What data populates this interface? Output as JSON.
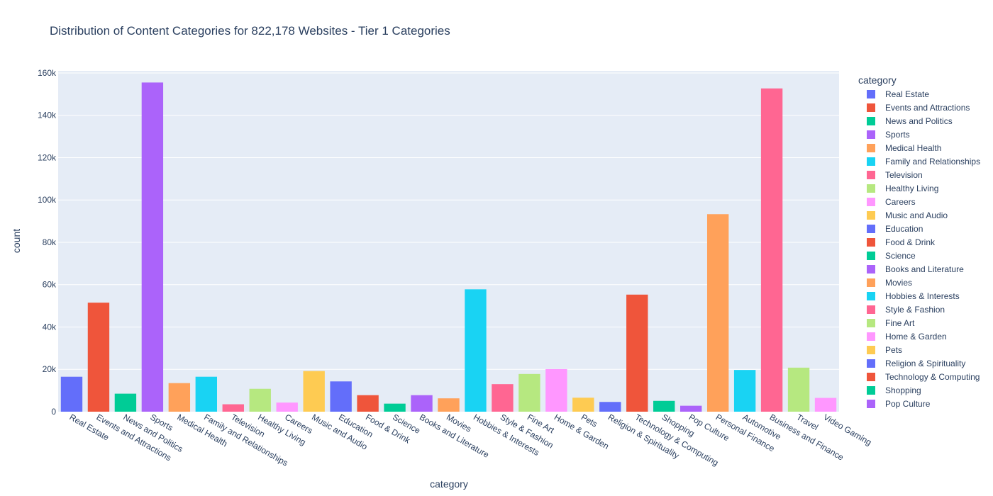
{
  "chart_data": {
    "type": "bar",
    "title": "Distribution of Content Categories for 822,178 Websites - Tier 1 Categories",
    "xlabel": "category",
    "ylabel": "count",
    "ylim": [
      0,
      161000
    ],
    "yticks": [
      0,
      20000,
      40000,
      60000,
      80000,
      100000,
      120000,
      140000,
      160000
    ],
    "ytick_labels": [
      "0",
      "20k",
      "40k",
      "60k",
      "80k",
      "100k",
      "120k",
      "140k",
      "160k"
    ],
    "grid": true,
    "legend_title": "category",
    "legend_position": "right",
    "categories": [
      "Real Estate",
      "Events and Attractions",
      "News and Politics",
      "Sports",
      "Medical Health",
      "Family and Relationships",
      "Television",
      "Healthy Living",
      "Careers",
      "Music and Audio",
      "Education",
      "Food & Drink",
      "Science",
      "Books and Literature",
      "Movies",
      "Hobbies & Interests",
      "Style & Fashion",
      "Fine Art",
      "Home & Garden",
      "Pets",
      "Religion & Spirituality",
      "Technology & Computing",
      "Shopping",
      "Pop Culture",
      "Personal Finance",
      "Automotive",
      "Business and Finance",
      "Travel",
      "Video Gaming"
    ],
    "values": [
      16500,
      51500,
      8500,
      155500,
      13500,
      16500,
      3500,
      10800,
      4300,
      19200,
      14300,
      7800,
      3800,
      7800,
      6300,
      57800,
      13000,
      17800,
      20100,
      6600,
      4600,
      55300,
      5100,
      2800,
      93300,
      19700,
      152700,
      20800,
      6500
    ],
    "colors": [
      "#636efa",
      "#EF553B",
      "#00cc96",
      "#ab63fa",
      "#FFA15A",
      "#19d3f3",
      "#FF6692",
      "#B6E880",
      "#FF97FF",
      "#FECB52",
      "#636efa",
      "#EF553B",
      "#00cc96",
      "#ab63fa",
      "#FFA15A",
      "#19d3f3",
      "#FF6692",
      "#B6E880",
      "#FF97FF",
      "#FECB52",
      "#636efa",
      "#EF553B",
      "#00cc96",
      "#ab63fa",
      "#FFA15A",
      "#19d3f3",
      "#FF6692",
      "#B6E880",
      "#FF97FF"
    ],
    "legend_entries": [
      "Real Estate",
      "Events and Attractions",
      "News and Politics",
      "Sports",
      "Medical Health",
      "Family and Relationships",
      "Television",
      "Healthy Living",
      "Careers",
      "Music and Audio",
      "Education",
      "Food & Drink",
      "Science",
      "Books and Literature",
      "Movies",
      "Hobbies & Interests",
      "Style & Fashion",
      "Fine Art",
      "Home & Garden",
      "Pets",
      "Religion & Spirituality",
      "Technology & Computing",
      "Shopping",
      "Pop Culture"
    ]
  }
}
